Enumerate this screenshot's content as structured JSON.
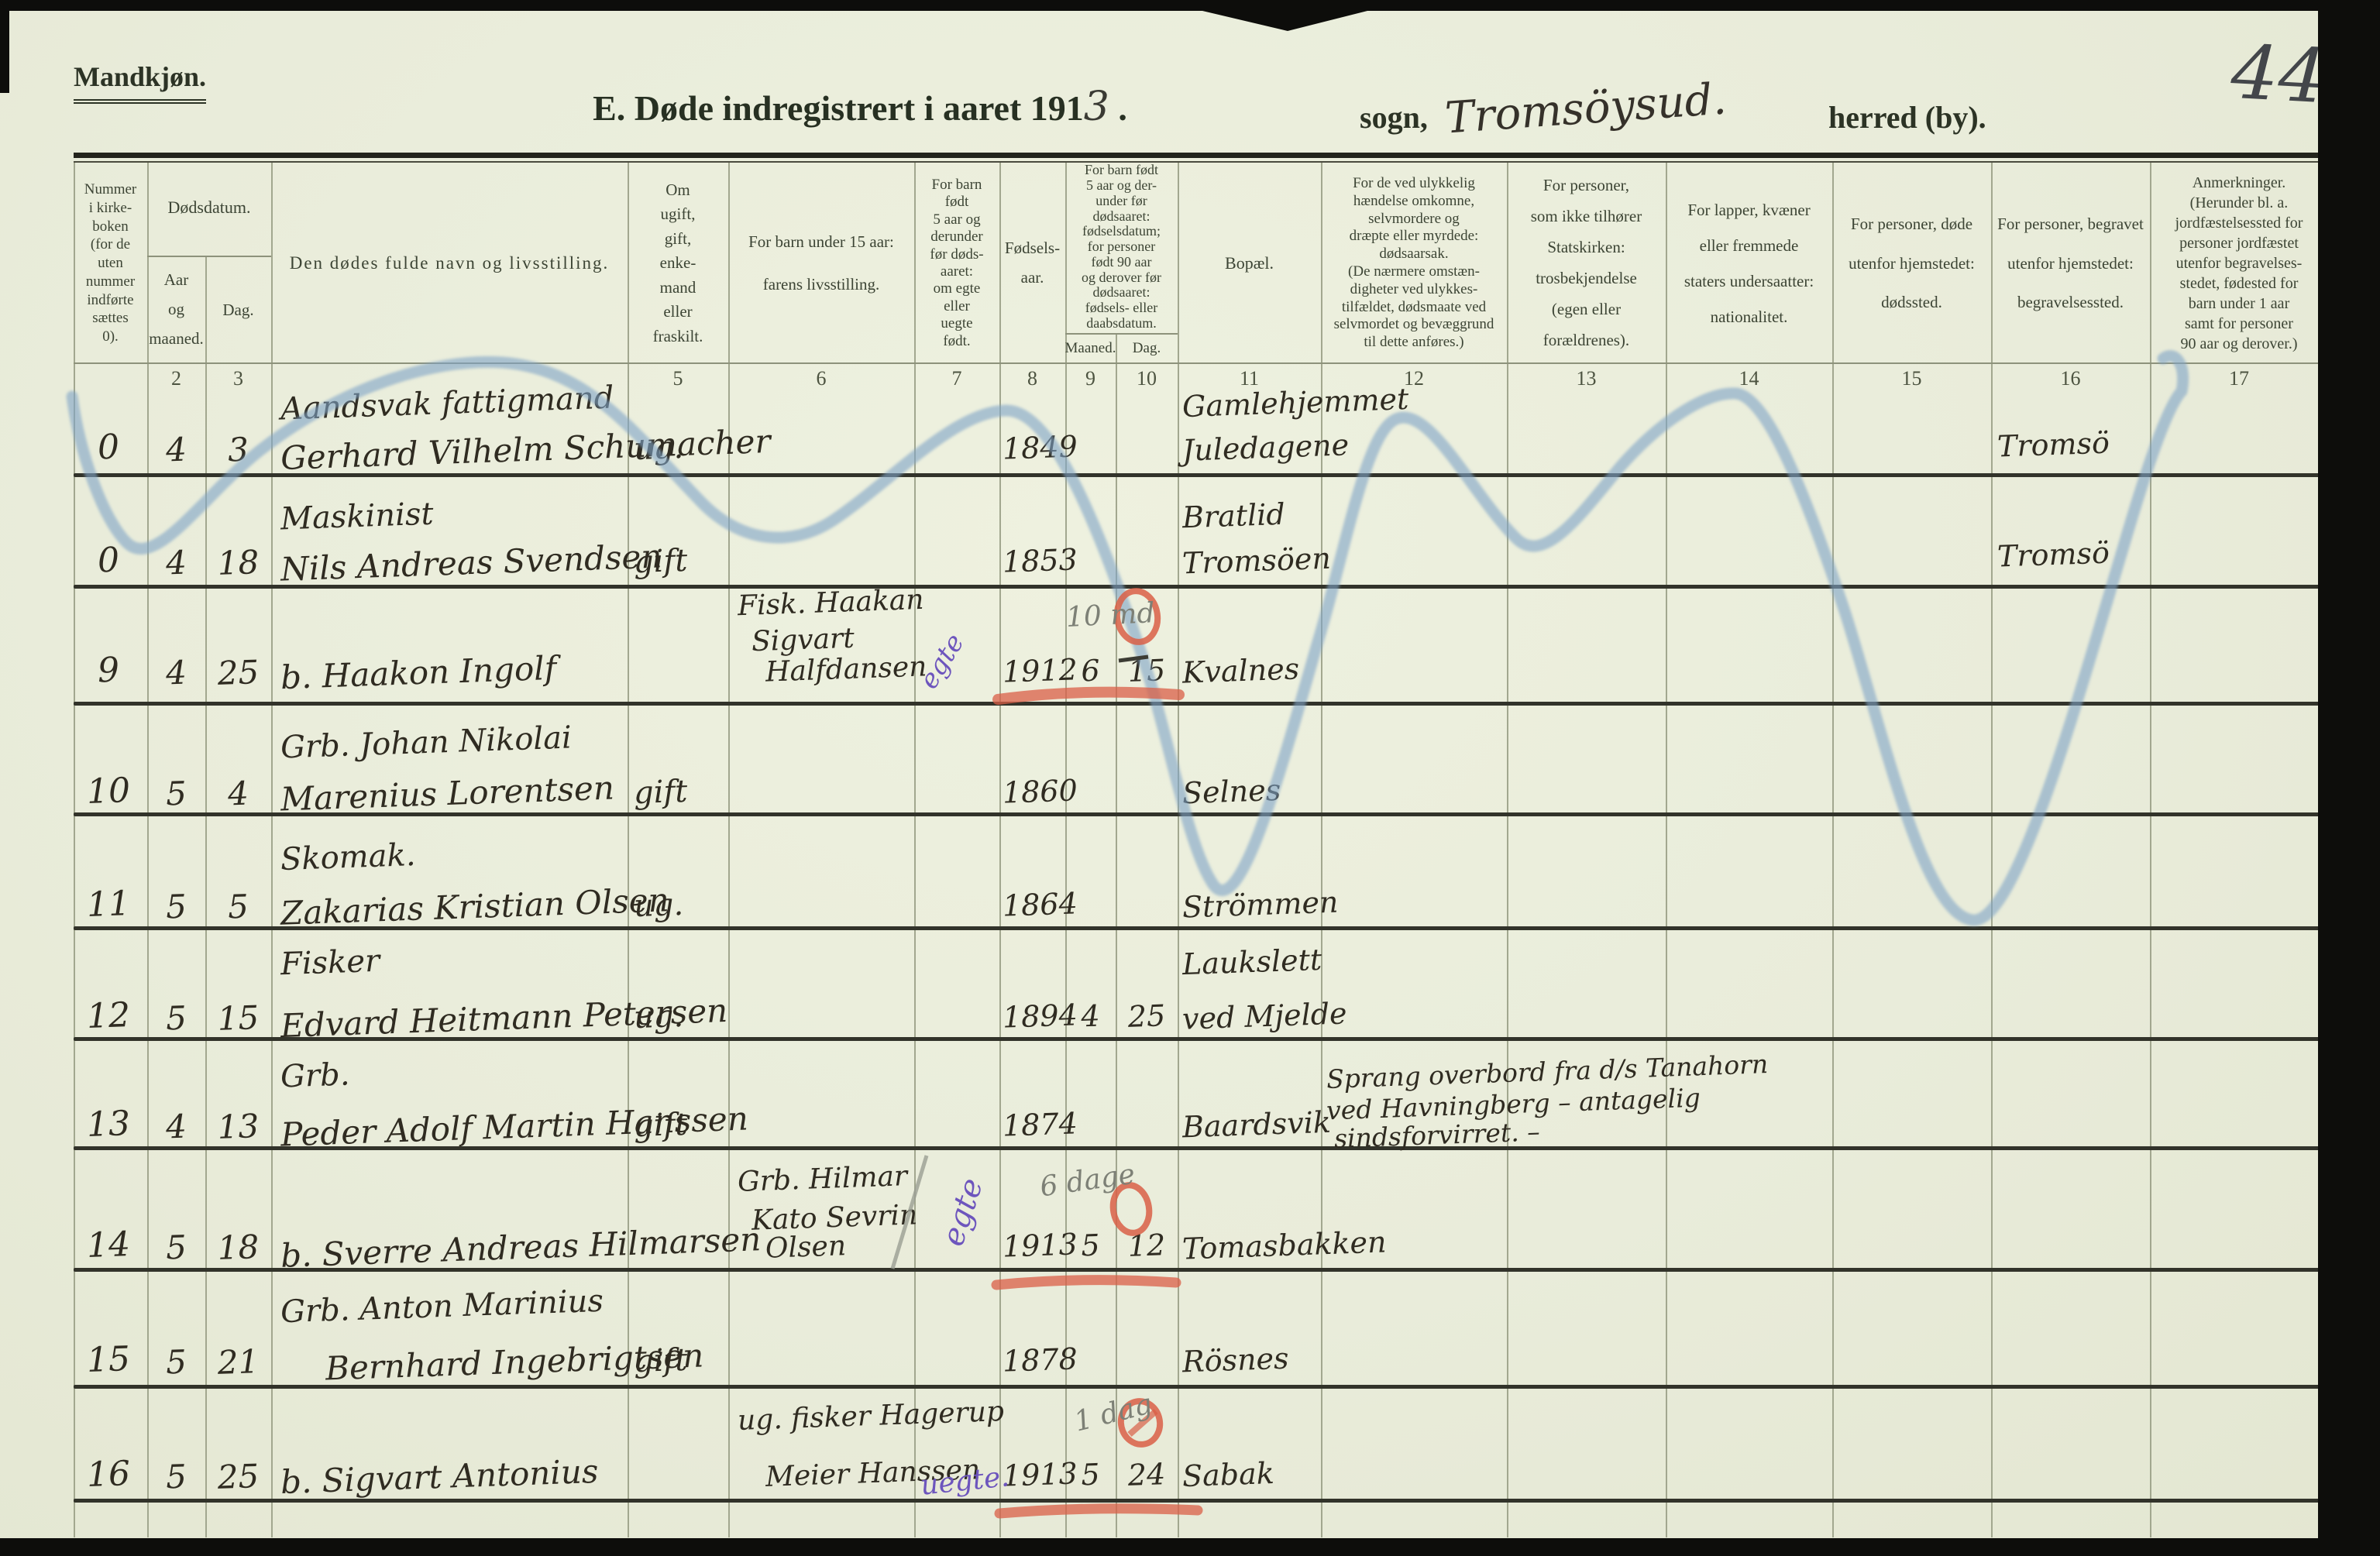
{
  "page": {
    "gender_label": "Mandkjøn.",
    "title_prefix": "E.  Døde indregistrert i aaret 191",
    "title_year_hw": "3",
    "title_suffix": " .",
    "sogn_label": "sogn,",
    "sogn_value_hw": "Tromsöysud.",
    "herred_label": "herred (by).",
    "page_number_hw": "44"
  },
  "table": {
    "headers": {
      "col1": "Nummer\ni kirke-\nboken\n(for de\nuten\nnummer\nindførte\nsættes\n0).",
      "dodsdatum": "Dødsdatum.",
      "aar_maaned": "Aar\nog\nmaaned.",
      "dag": "Dag.",
      "col4": "Den dødes fulde navn og livsstilling.",
      "col5": "Om\nugift,\ngift,\nenke-\nmand\neller\nfraskilt.",
      "col6": "For barn under 15 aar:\nfarens livsstilling.",
      "col7": "For barn\nfødt\n5 aar og\nderunder\nfør døds-\naaret:\nom egte\neller\nuegte\nfødt.",
      "col8": "Fødsels-\naar.",
      "col9_10": "For barn født\n5 aar og der-\nunder før\ndødsaaret:\nfødselsdatum;\nfor personer\nfødt 90 aar\nog derover før\ndødsaaret:\nfødsels- eller\ndaabsdatum.",
      "maaned": "Maaned.",
      "dag2": "Dag.",
      "col11": "Bopæl.",
      "col12": "For de ved ulykkelig\nhændelse omkomne,\nselvmordere og\ndræpte eller myrdede:\ndødsaarsak.\n(De nærmere omstæn-\ndigheter ved ulykkes-\ntilfældet, dødsmaate ved\nselvmordet og bevæggrund\ntil dette anføres.)",
      "col13": "For personer,\nsom ikke tilhører\nStatskirken:\ntrosbekjendelse\n(egen eller forældrenes).",
      "col14": "For lapper, kvæner\neller fremmede\nstaters undersaatter:\nnationalitet.",
      "col15": "For personer, døde\nutenfor hjemstedet:\ndødssted.",
      "col16": "For personer, begravet\nutenfor hjemstedet:\nbegravelsessted.",
      "col17": "Anmerkninger.\n(Herunder bl. a.\njordfæstelsessted for\npersoner jordfæstet\nutenfor begravelses-\nstedet, fødested for\nbarn under 1 aar\nsamt for personer\n90 aar og derover.)"
    },
    "col_numbers": [
      "",
      "2",
      "3",
      "",
      "5",
      "6",
      "7",
      "8",
      "9",
      "10",
      "11",
      "12",
      "13",
      "14",
      "15",
      "16",
      "17"
    ]
  },
  "rows": [
    {
      "nr": "0",
      "dd_month": "4",
      "dd_day": "3",
      "occ": "Aandsvak fattigmand",
      "name": "Gerhard Vilhelm Schumacher",
      "marital": "ug.",
      "byear": "1849",
      "bop_top": "Gamlehjemmet",
      "bop": "Juledagene",
      "burial": "Tromsö"
    },
    {
      "nr": "0",
      "dd_month": "4",
      "dd_day": "18",
      "occ": "Maskinist",
      "name": "Nils Andreas Svendsen",
      "marital": "gift",
      "byear": "1853",
      "bop_top": "Bratlid",
      "bop": "Tromsöen",
      "burial": "Tromsö"
    },
    {
      "nr": "9",
      "dd_month": "4",
      "dd_day": "25",
      "name": "b. Haakon Ingolf",
      "father": [
        "Fisk. Haakan",
        "Sigvart",
        "Halfdansen"
      ],
      "byear": "1912",
      "bmonth": "6",
      "bday": "15",
      "bop": "Kvalnes",
      "purple": "egte",
      "pencil": "10 md"
    },
    {
      "nr": "10",
      "dd_month": "5",
      "dd_day": "4",
      "occ": "Grb. Johan Nikolai",
      "name": "Marenius Lorentsen",
      "marital": "gift",
      "byear": "1860",
      "bop": "Selnes"
    },
    {
      "nr": "11",
      "dd_month": "5",
      "dd_day": "5",
      "occ": "Skomak.",
      "name": "Zakarias Kristian Olsen",
      "marital": "ug.",
      "byear": "1864",
      "bop": "Strömmen"
    },
    {
      "nr": "12",
      "dd_month": "5",
      "dd_day": "15",
      "occ": "Fisker",
      "name": "Edvard Heitmann Petersen",
      "marital": "ug.",
      "byear": "1894",
      "bmonth": "4",
      "bday": "25",
      "bop_top": "Laukslett",
      "bop": "ved Mjelde"
    },
    {
      "nr": "13",
      "dd_month": "4",
      "dd_day": "13",
      "occ": "Grb.",
      "name": "Peder Adolf Martin Hanssen",
      "marital": "gift",
      "byear": "1874",
      "bop": "Baardsvik",
      "cause": [
        "Sprang overbord fra d/s Tanahorn",
        "ved Havningberg – antagelig",
        "sindsforvirret. –"
      ]
    },
    {
      "nr": "14",
      "dd_month": "5",
      "dd_day": "18",
      "name": "b. Sverre Andreas Hilmarsen",
      "father": [
        "Grb. Hilmar",
        "Kato Sevrin",
        "Olsen"
      ],
      "byear": "1913",
      "bmonth": "5",
      "bday": "12",
      "bop": "Tomasbakken",
      "purple": "egte",
      "pencil": "6 dage"
    },
    {
      "nr": "15",
      "dd_month": "5",
      "dd_day": "21",
      "occ": "Grb. Anton Marinius",
      "name": "Bernhard Ingebrigtsen",
      "marital": "gift",
      "byear": "1878",
      "bop": "Rösnes"
    },
    {
      "nr": "16",
      "dd_month": "5",
      "dd_day": "25",
      "name": "b. Sigvart Antonius",
      "father": [
        "ug. fisker Hagerup",
        "",
        "Meier Hanssen"
      ],
      "byear": "1913",
      "bmonth": "5",
      "bday": "24",
      "bop": "Sabak",
      "purple": "uegte.",
      "pencil": "1 dag"
    }
  ],
  "marks": {
    "blue_wave": "check-scrawl",
    "blue_color": "#7fa3c6",
    "red_color": "#d95f47",
    "violet_color": "#6d55bd",
    "pencil_color": "#7d8076"
  }
}
